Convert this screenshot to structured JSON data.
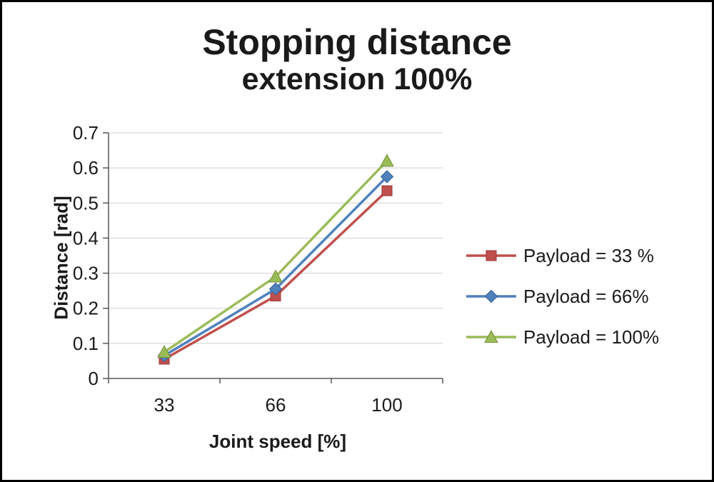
{
  "chart_data": {
    "type": "line",
    "title": "Stopping distance",
    "subtitle": "extension 100%",
    "xlabel": "Joint speed [%]",
    "ylabel": "Distance [rad]",
    "categories": [
      "33",
      "66",
      "100"
    ],
    "x_values": [
      33,
      66,
      100
    ],
    "series": [
      {
        "name": "Payload = 33 %",
        "marker": "square",
        "color": "#c0504d",
        "stroke": "#963634",
        "values": [
          0.055,
          0.235,
          0.535
        ]
      },
      {
        "name": "Payload =  66%",
        "marker": "diamond",
        "color": "#4f81bd",
        "stroke": "#376092",
        "values": [
          0.065,
          0.255,
          0.575
        ]
      },
      {
        "name": "Payload =  100%",
        "marker": "triangle",
        "color": "#9bbb59",
        "stroke": "#76923c",
        "values": [
          0.075,
          0.29,
          0.62
        ]
      }
    ],
    "y_axis": {
      "min": 0,
      "max": 0.7,
      "step": 0.1,
      "tick_labels": [
        "0",
        "0.1",
        "0.2",
        "0.3",
        "0.4",
        "0.5",
        "0.6",
        "0.7"
      ]
    },
    "legend_position": "right",
    "grid": "horizontal",
    "colors": {
      "axis": "#595959",
      "gridline": "#cfcfcf",
      "text": "#1a1a1a"
    }
  }
}
